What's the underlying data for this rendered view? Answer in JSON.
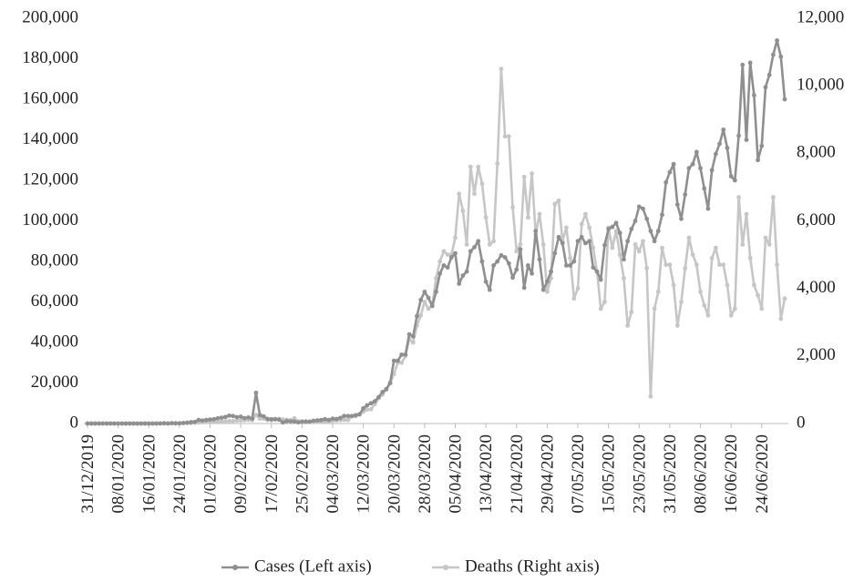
{
  "chart_data": {
    "type": "line",
    "x": [
      "31/12/2019",
      null,
      null,
      null,
      null,
      null,
      null,
      null,
      "08/01/2020",
      null,
      null,
      null,
      null,
      null,
      null,
      null,
      "16/01/2020",
      null,
      null,
      null,
      null,
      null,
      null,
      null,
      "24/01/2020",
      null,
      null,
      null,
      null,
      null,
      null,
      null,
      "01/02/2020",
      null,
      null,
      null,
      null,
      null,
      null,
      null,
      "09/02/2020",
      null,
      null,
      null,
      null,
      null,
      null,
      null,
      "17/02/2020",
      null,
      null,
      null,
      null,
      null,
      null,
      null,
      "25/02/2020",
      null,
      null,
      null,
      null,
      null,
      null,
      null,
      "04/03/2020",
      null,
      null,
      null,
      null,
      null,
      null,
      null,
      "12/03/2020",
      null,
      null,
      null,
      null,
      null,
      null,
      null,
      "20/03/2020",
      null,
      null,
      null,
      null,
      null,
      null,
      null,
      "28/03/2020",
      null,
      null,
      null,
      null,
      null,
      null,
      null,
      "05/04/2020",
      null,
      null,
      null,
      null,
      null,
      null,
      null,
      "13/04/2020",
      null,
      null,
      null,
      null,
      null,
      null,
      null,
      "21/04/2020",
      null,
      null,
      null,
      null,
      null,
      null,
      null,
      "29/04/2020",
      null,
      null,
      null,
      null,
      null,
      null,
      null,
      "07/05/2020",
      null,
      null,
      null,
      null,
      null,
      null,
      null,
      "15/05/2020",
      null,
      null,
      null,
      null,
      null,
      null,
      null,
      "23/05/2020",
      null,
      null,
      null,
      null,
      null,
      null,
      null,
      "31/05/2020",
      null,
      null,
      null,
      null,
      null,
      null,
      null,
      "08/06/2020",
      null,
      null,
      null,
      null,
      null,
      null,
      null,
      "16/06/2020",
      null,
      null,
      null,
      null,
      null,
      null,
      null,
      "24/06/2020",
      null,
      null,
      null,
      null,
      null,
      null
    ],
    "series": [
      {
        "name": "Cases (Left axis)",
        "color": "#8f8f8f",
        "values": [
          27,
          0,
          0,
          0,
          17,
          0,
          15,
          0,
          0,
          0,
          0,
          0,
          0,
          1,
          0,
          1,
          1,
          0,
          4,
          17,
          136,
          19,
          152,
          140,
          97,
          259,
          441,
          665,
          787,
          1753,
          1466,
          1740,
          1980,
          2102,
          2590,
          2829,
          3235,
          3887,
          3694,
          3151,
          3387,
          2653,
          2984,
          2473,
          15141,
          4156,
          3528,
          2280,
          2101,
          2055,
          1903,
          538,
          1148,
          1063,
          991,
          574,
          857,
          1004,
          893,
          1352,
          1560,
          1715,
          2178,
          1740,
          2380,
          2210,
          2765,
          3738,
          3720,
          3722,
          4100,
          4520,
          7500,
          9000,
          10000,
          11000,
          13000,
          15500,
          17000,
          20000,
          31000,
          31000,
          34000,
          34000,
          44000,
          43000,
          53000,
          61000,
          65000,
          62000,
          58000,
          65000,
          74000,
          78000,
          77000,
          82000,
          84000,
          69000,
          73000,
          75000,
          85000,
          87000,
          90000,
          80000,
          70000,
          66000,
          78000,
          80000,
          83000,
          82000,
          79000,
          72000,
          76000,
          86000,
          67000,
          78000,
          74000,
          95000,
          81000,
          66000,
          70000,
          75000,
          84000,
          92000,
          89000,
          78000,
          78000,
          80000,
          90000,
          92000,
          89000,
          90000,
          77000,
          75000,
          71000,
          88000,
          96000,
          97000,
          99000,
          94000,
          81000,
          90000,
          96000,
          100000,
          107000,
          106000,
          101000,
          95000,
          90000,
          95000,
          103000,
          119000,
          124000,
          128000,
          108000,
          101000,
          113000,
          126000,
          128000,
          134000,
          126000,
          116000,
          106000,
          125000,
          133000,
          138000,
          145000,
          136000,
          122000,
          120000,
          142000,
          177000,
          140000,
          178000,
          162000,
          130000,
          137000,
          166000,
          172000,
          182000,
          189000,
          181000,
          160000
        ]
      },
      {
        "name": "Deaths (Right axis)",
        "color": "#c6c6c6",
        "axis": "y2",
        "values": [
          0,
          0,
          0,
          0,
          0,
          0,
          0,
          0,
          0,
          0,
          0,
          1,
          0,
          0,
          0,
          0,
          0,
          0,
          0,
          0,
          3,
          0,
          11,
          0,
          8,
          16,
          15,
          15,
          25,
          26,
          38,
          43,
          46,
          45,
          57,
          64,
          66,
          73,
          73,
          86,
          89,
          97,
          108,
          97,
          254,
          143,
          142,
          106,
          98,
          139,
          136,
          120,
          111,
          96,
          155,
          71,
          64,
          37,
          58,
          69,
          58,
          54,
          48,
          56,
          80,
          89,
          101,
          109,
          104,
          209,
          216,
          276,
          352,
          412,
          424,
          573,
          753,
          856,
          1006,
          1190,
          1468,
          1800,
          1800,
          2000,
          2500,
          2400,
          2900,
          3200,
          3600,
          3400,
          3500,
          4300,
          4800,
          5100,
          5000,
          5000,
          5500,
          6800,
          6300,
          5300,
          7600,
          6800,
          7600,
          7100,
          6100,
          5300,
          5400,
          7700,
          10500,
          8500,
          8500,
          6400,
          5100,
          5300,
          7300,
          6100,
          7400,
          5600,
          6200,
          5300,
          3900,
          4300,
          6500,
          6600,
          5400,
          5800,
          4900,
          3700,
          4000,
          5900,
          6200,
          5800,
          5200,
          4500,
          3400,
          3600,
          5800,
          5200,
          5700,
          5000,
          4300,
          2900,
          3300,
          5300,
          5100,
          5400,
          4600,
          800,
          3400,
          3900,
          5200,
          4700,
          4700,
          4100,
          2900,
          3600,
          4600,
          5500,
          5000,
          4700,
          3900,
          3500,
          3200,
          4900,
          5200,
          4700,
          4700,
          4100,
          3200,
          3400,
          6700,
          5300,
          6200,
          4900,
          4100,
          3800,
          3400,
          5500,
          5300,
          6700,
          4700,
          3100,
          3700
        ]
      }
    ],
    "ylim": [
      0,
      200000
    ],
    "yticks": [
      0,
      {
        "value": 20000,
        "label": "20,000"
      },
      {
        "value": 40000,
        "label": "40,000"
      },
      {
        "value": 60000,
        "label": "60,000"
      },
      {
        "value": 80000,
        "label": "80,000"
      },
      {
        "value": 100000,
        "label": "100,000"
      },
      {
        "value": 120000,
        "label": "120,000"
      },
      {
        "value": 140000,
        "label": "140,000"
      },
      {
        "value": 160000,
        "label": "160,000"
      },
      {
        "value": 180000,
        "label": "180,000"
      },
      {
        "value": 200000,
        "label": "200,000"
      }
    ],
    "y2lim": [
      0,
      12000
    ],
    "y2ticks": [
      0,
      {
        "value": 2000,
        "label": "2,000"
      },
      {
        "value": 4000,
        "label": "4,000"
      },
      {
        "value": 6000,
        "label": "6,000"
      },
      {
        "value": 8000,
        "label": "8,000"
      },
      {
        "value": 10000,
        "label": "10,000"
      },
      {
        "value": 12000,
        "label": "12,000"
      }
    ],
    "legend": "bottom"
  }
}
